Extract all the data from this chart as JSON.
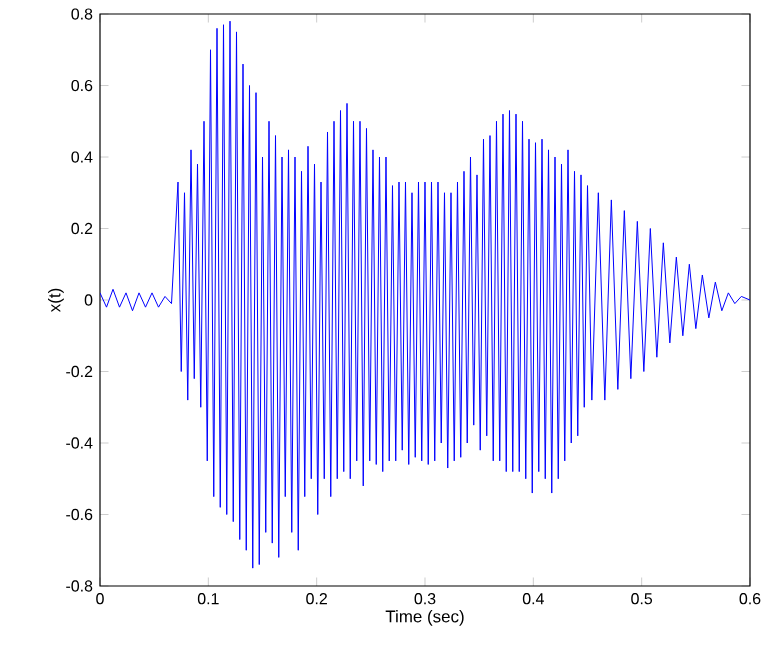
{
  "chart_data": {
    "type": "line",
    "xlabel": "Time (sec)",
    "ylabel": "x(t)",
    "xlim": [
      0,
      0.6
    ],
    "ylim": [
      -0.8,
      0.8
    ],
    "xticks": [
      0,
      0.1,
      0.2,
      0.3,
      0.4,
      0.5,
      0.6
    ],
    "yticks": [
      -0.8,
      -0.6,
      -0.4,
      -0.2,
      0,
      0.2,
      0.4,
      0.6,
      0.8
    ],
    "grid": false,
    "marker": "none",
    "line_style": "solid",
    "series": [
      {
        "color": "#0000ff",
        "x": [
          0,
          0.006,
          0.012,
          0.018,
          0.024,
          0.03,
          0.036,
          0.042,
          0.048,
          0.054,
          0.06,
          0.066,
          0.072,
          0.075,
          0.078,
          0.081,
          0.084,
          0.087,
          0.09,
          0.093,
          0.096,
          0.099,
          0.102,
          0.105,
          0.108,
          0.111,
          0.114,
          0.117,
          0.12,
          0.123,
          0.126,
          0.129,
          0.132,
          0.135,
          0.138,
          0.141,
          0.144,
          0.147,
          0.15,
          0.153,
          0.156,
          0.159,
          0.162,
          0.165,
          0.168,
          0.171,
          0.174,
          0.177,
          0.18,
          0.183,
          0.186,
          0.189,
          0.192,
          0.195,
          0.198,
          0.201,
          0.204,
          0.207,
          0.21,
          0.213,
          0.216,
          0.219,
          0.222,
          0.225,
          0.228,
          0.231,
          0.234,
          0.237,
          0.24,
          0.243,
          0.246,
          0.249,
          0.252,
          0.255,
          0.258,
          0.261,
          0.264,
          0.267,
          0.27,
          0.273,
          0.276,
          0.279,
          0.282,
          0.285,
          0.288,
          0.291,
          0.294,
          0.297,
          0.3,
          0.303,
          0.306,
          0.309,
          0.312,
          0.315,
          0.318,
          0.321,
          0.324,
          0.327,
          0.33,
          0.333,
          0.336,
          0.339,
          0.342,
          0.345,
          0.348,
          0.351,
          0.354,
          0.357,
          0.36,
          0.363,
          0.366,
          0.369,
          0.372,
          0.375,
          0.378,
          0.381,
          0.384,
          0.387,
          0.39,
          0.393,
          0.396,
          0.399,
          0.402,
          0.405,
          0.408,
          0.411,
          0.414,
          0.417,
          0.42,
          0.423,
          0.426,
          0.429,
          0.432,
          0.435,
          0.438,
          0.441,
          0.444,
          0.447,
          0.45,
          0.454,
          0.46,
          0.466,
          0.472,
          0.478,
          0.484,
          0.49,
          0.496,
          0.502,
          0.508,
          0.514,
          0.52,
          0.526,
          0.532,
          0.538,
          0.544,
          0.55,
          0.556,
          0.562,
          0.568,
          0.574,
          0.58,
          0.586,
          0.592,
          0.6
        ],
        "values": [
          0.02,
          -0.02,
          0.03,
          -0.02,
          0.02,
          -0.03,
          0.02,
          -0.02,
          0.02,
          -0.02,
          0.01,
          -0.01,
          0.33,
          -0.2,
          0.3,
          -0.28,
          0.42,
          -0.22,
          0.38,
          -0.3,
          0.5,
          -0.45,
          0.7,
          -0.55,
          0.76,
          -0.58,
          0.77,
          -0.6,
          0.78,
          -0.62,
          0.75,
          -0.67,
          0.66,
          -0.7,
          0.6,
          -0.75,
          0.58,
          -0.74,
          0.4,
          -0.65,
          0.5,
          -0.68,
          0.46,
          -0.72,
          0.4,
          -0.55,
          0.42,
          -0.65,
          0.4,
          -0.7,
          0.36,
          -0.55,
          0.43,
          -0.5,
          0.38,
          -0.6,
          0.33,
          -0.5,
          0.47,
          -0.55,
          0.5,
          -0.5,
          0.53,
          -0.48,
          0.55,
          -0.5,
          0.5,
          -0.45,
          0.5,
          -0.52,
          0.48,
          -0.45,
          0.42,
          -0.46,
          0.4,
          -0.48,
          0.4,
          -0.45,
          0.32,
          -0.45,
          0.33,
          -0.42,
          0.33,
          -0.46,
          0.3,
          -0.44,
          0.33,
          -0.45,
          0.33,
          -0.46,
          0.33,
          -0.45,
          0.33,
          -0.4,
          0.3,
          -0.47,
          0.3,
          -0.45,
          0.33,
          -0.44,
          0.36,
          -0.4,
          0.4,
          -0.35,
          0.35,
          -0.42,
          0.45,
          -0.38,
          0.46,
          -0.45,
          0.5,
          -0.45,
          0.52,
          -0.48,
          0.53,
          -0.48,
          0.52,
          -0.48,
          0.5,
          -0.5,
          0.45,
          -0.54,
          0.44,
          -0.48,
          0.45,
          -0.5,
          0.42,
          -0.54,
          0.4,
          -0.5,
          0.38,
          -0.45,
          0.42,
          -0.4,
          0.36,
          -0.38,
          0.35,
          -0.3,
          0.32,
          -0.28,
          0.3,
          -0.28,
          0.28,
          -0.25,
          0.25,
          -0.22,
          0.22,
          -0.2,
          0.2,
          -0.16,
          0.16,
          -0.12,
          0.12,
          -0.1,
          0.1,
          -0.08,
          0.07,
          -0.05,
          0.05,
          -0.03,
          0.02,
          -0.01,
          0.01,
          0
        ]
      }
    ]
  }
}
